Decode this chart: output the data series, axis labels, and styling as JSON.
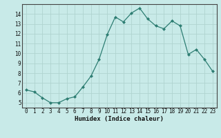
{
  "x": [
    0,
    1,
    2,
    3,
    4,
    5,
    6,
    7,
    8,
    9,
    10,
    11,
    12,
    13,
    14,
    15,
    16,
    17,
    18,
    19,
    20,
    21,
    22,
    23
  ],
  "y": [
    6.3,
    6.1,
    5.5,
    5.0,
    5.0,
    5.4,
    5.6,
    6.6,
    7.7,
    9.4,
    11.9,
    13.7,
    13.2,
    14.1,
    14.6,
    13.5,
    12.8,
    12.5,
    13.3,
    12.8,
    9.9,
    10.4,
    9.4,
    8.2
  ],
  "xlabel": "Humidex (Indice chaleur)",
  "bg_color": "#c8eae8",
  "line_color": "#2d7d72",
  "grid_color": "#b0d4d0",
  "ylim": [
    4.5,
    15.0
  ],
  "xlim": [
    -0.5,
    23.5
  ],
  "yticks": [
    5,
    6,
    7,
    8,
    9,
    10,
    11,
    12,
    13,
    14
  ],
  "xticks": [
    0,
    1,
    2,
    3,
    4,
    5,
    6,
    7,
    8,
    9,
    10,
    11,
    12,
    13,
    14,
    15,
    16,
    17,
    18,
    19,
    20,
    21,
    22,
    23
  ]
}
